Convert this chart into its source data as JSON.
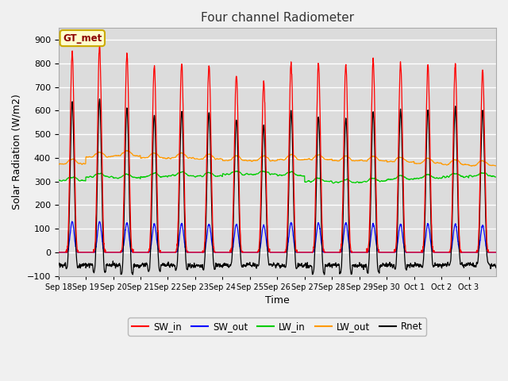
{
  "title": "Four channel Radiometer",
  "xlabel": "Time",
  "ylabel": "Solar Radiation (W/m2)",
  "ylim": [
    -100,
    950
  ],
  "yticks": [
    -100,
    0,
    100,
    200,
    300,
    400,
    500,
    600,
    700,
    800,
    900
  ],
  "legend_entries": [
    "SW_in",
    "SW_out",
    "LW_in",
    "LW_out",
    "Rnet"
  ],
  "legend_colors": [
    "#ff0000",
    "#0000ff",
    "#00cc00",
    "#ff9900",
    "#000000"
  ],
  "station_label": "GT_met",
  "plot_bg_color": "#dcdcdc",
  "fig_bg_color": "#f0f0f0",
  "grid_color": "#ffffff",
  "title_fontsize": 11,
  "axis_fontsize": 9,
  "tick_fontsize": 8,
  "num_days": 16,
  "day_labels": [
    "Sep 18",
    "Sep 19",
    "Sep 20",
    "Sep 21",
    "Sep 22",
    "Sep 23",
    "Sep 24",
    "Sep 25",
    "Sep 26",
    "Sep 27",
    "Sep 28",
    "Sep 29",
    "Sep 30",
    "Oct 1",
    "Oct 2",
    "Oct 3"
  ],
  "SW_in_peaks": [
    850,
    870,
    840,
    790,
    800,
    795,
    750,
    720,
    800,
    800,
    800,
    810,
    800,
    795,
    795,
    770
  ],
  "SW_out_peaks": [
    130,
    130,
    125,
    120,
    120,
    120,
    120,
    115,
    125,
    125,
    125,
    120,
    120,
    120,
    120,
    115
  ],
  "LW_in_base": [
    305,
    320,
    315,
    320,
    325,
    322,
    330,
    330,
    325,
    300,
    295,
    300,
    310,
    315,
    320,
    322
  ],
  "LW_out_base": [
    375,
    405,
    410,
    400,
    400,
    395,
    388,
    388,
    393,
    393,
    388,
    388,
    383,
    378,
    372,
    368
  ],
  "Rnet_night": -55
}
